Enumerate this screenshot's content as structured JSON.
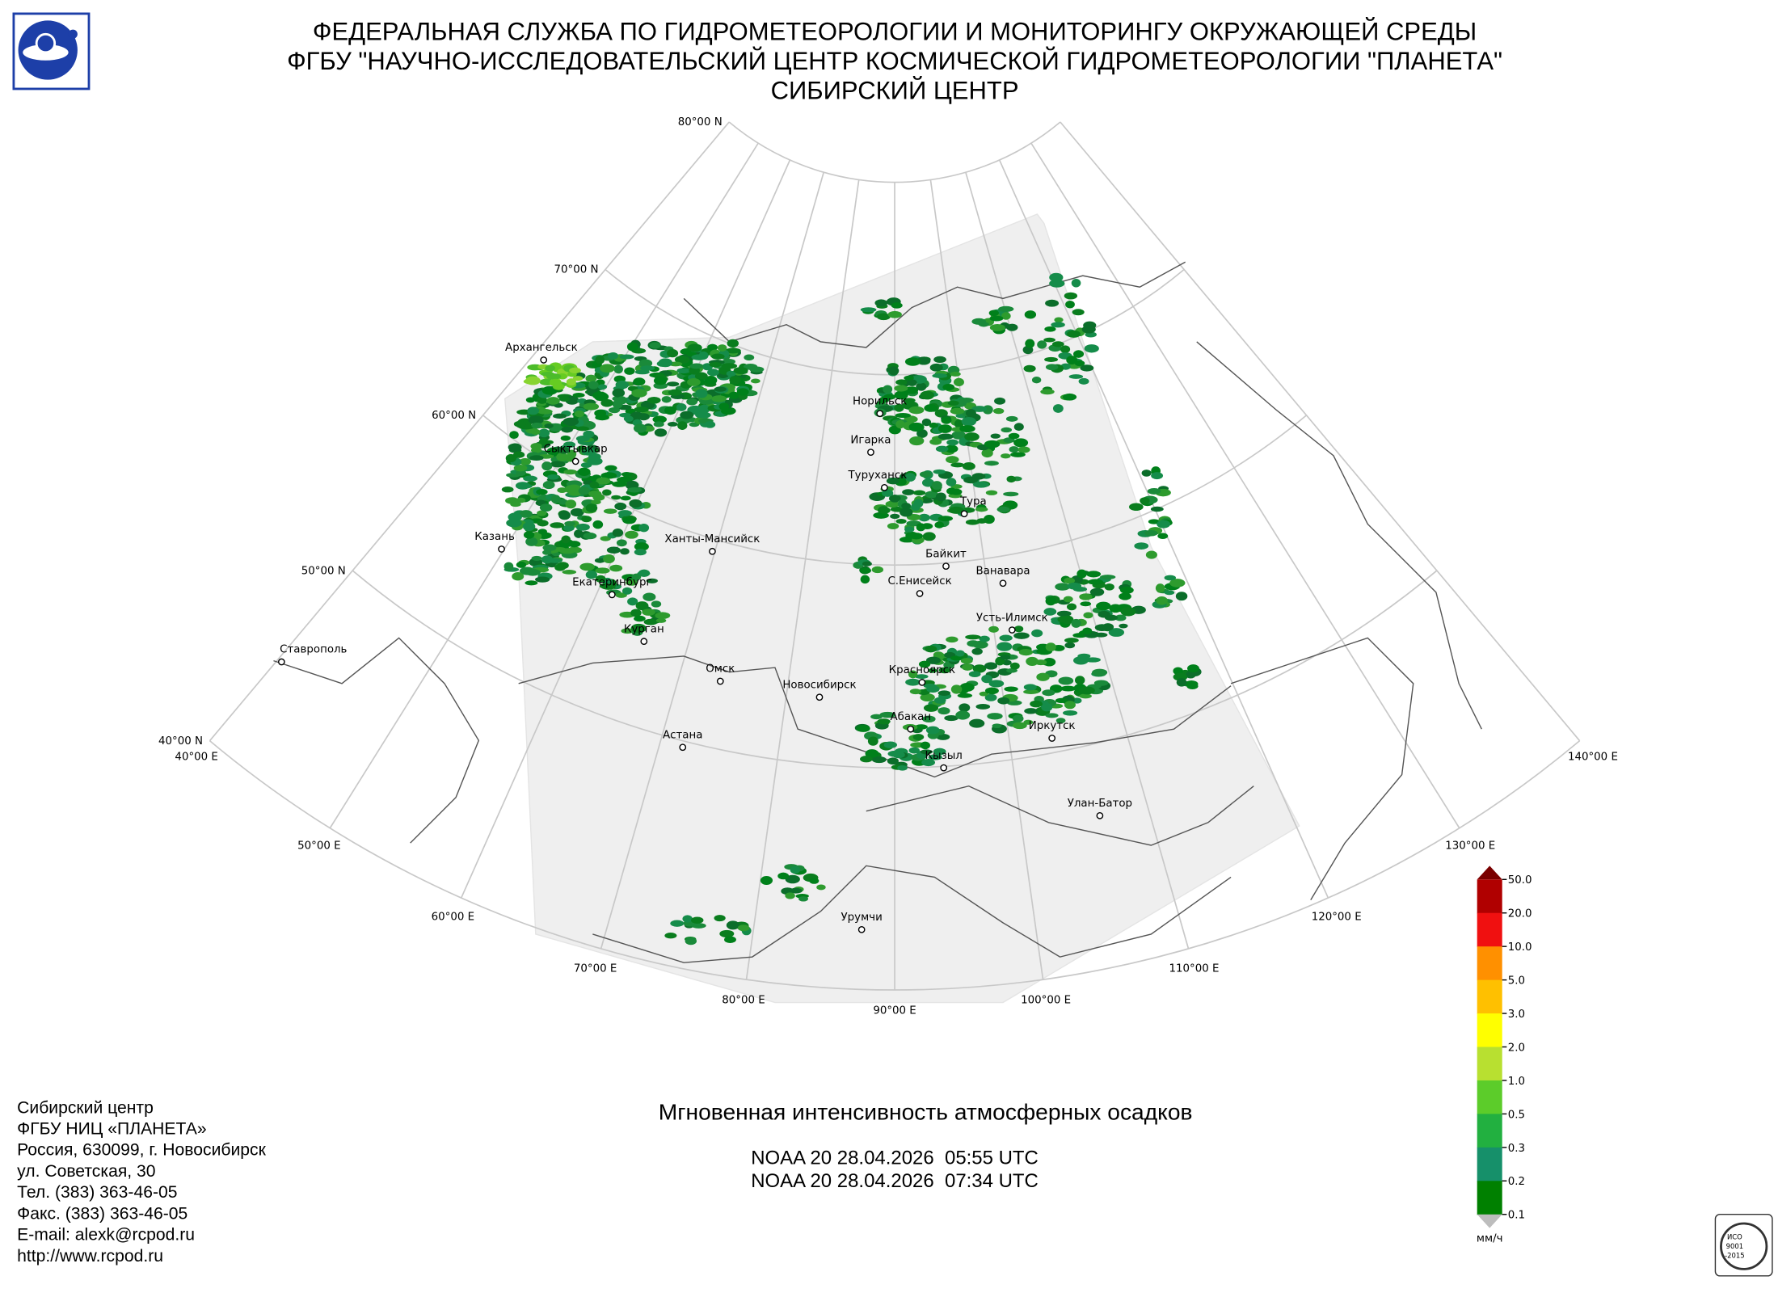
{
  "header": {
    "lines": [
      "ФЕДЕРАЛЬНАЯ СЛУЖБА ПО ГИДРОМЕТЕОРОЛОГИИ И МОНИТОРИНГУ ОКРУЖАЮЩЕЙ СРЕДЫ",
      "ФГБУ \"НАУЧНО-ИССЛЕДОВАТЕЛЬСКИЙ ЦЕНТР КОСМИЧЕСКОЙ ГИДРОМЕТЕОРОЛОГИИ \"ПЛАНЕТА\"",
      "СИБИРСКИЙ ЦЕНТР"
    ]
  },
  "graticule": {
    "parallels": [
      "80°00 N",
      "70°00 N",
      "60°00 N",
      "50°00 N",
      "40°00 N"
    ],
    "meridians": [
      "40°00 E",
      "50°00 E",
      "60°00 E",
      "70°00 E",
      "80°00 E",
      "90°00 E",
      "100°00 E",
      "110°00 E",
      "120°00 E",
      "130°00 E",
      "140°00 E"
    ]
  },
  "cities": [
    "Архангельск",
    "Сыктывкар",
    "Казань",
    "Ханты-Мансийск",
    "Екатеринбург",
    "Курган",
    "Ставрополь",
    "Омск",
    "Новосибирск",
    "Астана",
    "Норильск",
    "Игарка",
    "Туруханск",
    "Тура",
    "Байкит",
    "С.Енисейск",
    "Ванавара",
    "Усть-Илимск",
    "Красноярск",
    "Абакан",
    "Кызыл",
    "Иркутск",
    "Улан-Батор",
    "Урумчи"
  ],
  "legend": {
    "labels": [
      "50.0",
      "20.0",
      "10.0",
      "5.0",
      "3.0",
      "2.0",
      "1.0",
      "0.5",
      "0.3",
      "0.2",
      "0.1"
    ],
    "unit": "мм/ч"
  },
  "product": {
    "title": "Мгновенная интенсивность атмосферных осадков",
    "passes": [
      "NOAA 20 28.04.2026  05:55 UTC",
      "NOAA 20 28.04.2026  07:34 UTC"
    ]
  },
  "contacts": [
    "Сибирский центр",
    "ФГБУ НИЦ «ПЛАНЕТА»",
    "Россия, 630099, г. Новосибирск",
    "ул. Советская, 30",
    "Тел. (383) 363-46-05",
    "Факс. (383) 363-46-05",
    "E-mail: alexk@rcpod.ru",
    "http://www.rcpod.ru"
  ],
  "certification": [
    "ИСО",
    "9001",
    "-2015"
  ]
}
